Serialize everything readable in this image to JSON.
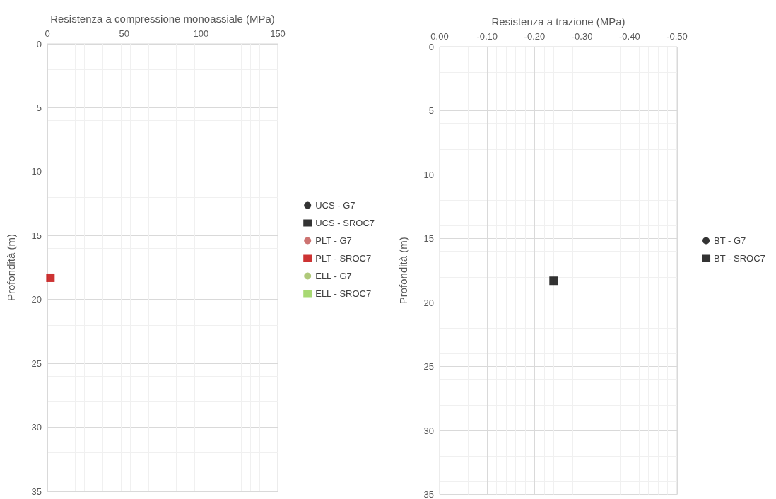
{
  "chart_data": [
    {
      "type": "scatter",
      "xlabel": "Resistenza a compressione monoassiale (MPa)",
      "ylabel": "Profondità (m)",
      "xlim": [
        0,
        150
      ],
      "xticks": [
        0,
        50,
        100,
        150
      ],
      "ylim": [
        35,
        0
      ],
      "yticks": [
        0,
        5,
        10,
        15,
        20,
        25,
        30,
        35
      ],
      "grid": true,
      "legend": "right",
      "series": [
        {
          "name": "UCS - G7",
          "color": "#000000",
          "marker": "circle"
        },
        {
          "name": "UCS - SROC7",
          "color": "#000000",
          "marker": "square"
        },
        {
          "name": "PLT - G7",
          "color": "#c0504d",
          "marker": "circle"
        },
        {
          "name": "PLT - SROC7",
          "color": "#c00000",
          "marker": "square",
          "x": [
            2
          ],
          "values": [
            18.3
          ]
        },
        {
          "name": "ELL - G7",
          "color": "#9bbb59",
          "marker": "circle"
        },
        {
          "name": "ELL - SROC7",
          "color": "#92d050",
          "marker": "square"
        }
      ]
    },
    {
      "type": "scatter",
      "xlabel": "Resistenza a trazione (MPa)",
      "ylabel": "Profondità (m)",
      "xlim": [
        0,
        -0.5
      ],
      "xticks": [
        {
          "value": 0,
          "label": "0.00"
        },
        {
          "value": -0.1,
          "label": "-0.10"
        },
        {
          "value": -0.2,
          "label": "-0.20"
        },
        {
          "value": -0.3,
          "label": "-0.30"
        },
        {
          "value": -0.4,
          "label": "-0.40"
        },
        {
          "value": -0.5,
          "label": "-0.50"
        }
      ],
      "ylim": [
        35,
        0
      ],
      "yticks": [
        0,
        5,
        10,
        15,
        20,
        25,
        30,
        35
      ],
      "grid": true,
      "legend": "right",
      "series": [
        {
          "name": "BT - G7",
          "color": "#000000",
          "marker": "circle"
        },
        {
          "name": "BT - SROC7",
          "color": "#000000",
          "marker": "square",
          "x": [
            -0.24
          ],
          "values": [
            18.3
          ]
        }
      ]
    }
  ]
}
